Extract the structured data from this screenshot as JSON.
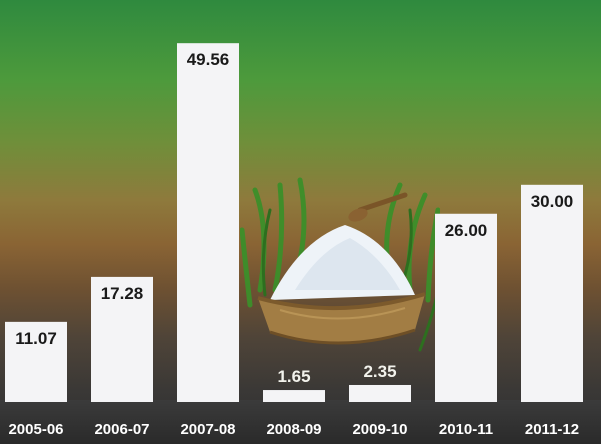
{
  "chart_data": {
    "type": "bar",
    "categories": [
      "2005-06",
      "2006-07",
      "2007-08",
      "2008-09",
      "2009-10",
      "2010-11",
      "2011-12"
    ],
    "values": [
      11.07,
      17.28,
      49.56,
      1.65,
      2.35,
      26.0,
      30.0
    ],
    "value_labels": [
      "11.07",
      "17.28",
      "49.56",
      "1.65",
      "2.35",
      "26.00",
      "30.00"
    ],
    "title": "",
    "xlabel": "",
    "ylabel": "",
    "ylim": [
      0,
      50
    ],
    "grid": false,
    "colors": {
      "bar": "#f4f4f6",
      "value_text": "#1a1a1a",
      "tick_text": "#ffffff",
      "background_top": "#2f8a3e",
      "background_bottom": "#2e2e2e"
    }
  },
  "illustration": {
    "icon": "salt-sack-icon"
  }
}
